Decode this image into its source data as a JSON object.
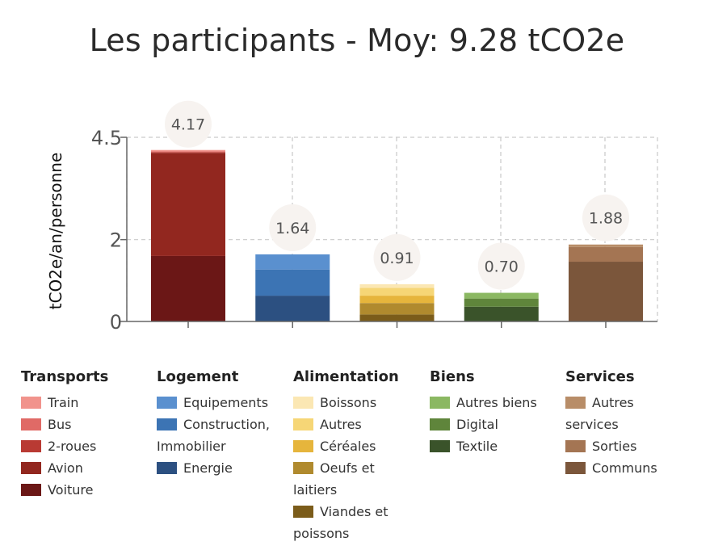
{
  "title": "Les participants - Moy: 9.28 tCO2e",
  "chart_data": {
    "type": "bar",
    "stacked": true,
    "title": "Les participants - Moy: 9.28 tCO2e",
    "ylabel": "tCO2e/an/personne",
    "xlabel": "",
    "ylim": [
      0,
      4.5
    ],
    "yticks": [
      "4.5",
      "2",
      "0"
    ],
    "ytick_values": [
      4.5,
      2,
      0
    ],
    "grid": true,
    "categories": [
      "Transports",
      "Logement",
      "Alimentation",
      "Biens",
      "Services"
    ],
    "totals": [
      4.17,
      1.64,
      0.91,
      0.7,
      1.88
    ],
    "total_labels": [
      "4.17",
      "1.64",
      "0.91",
      "0.70",
      "1.88"
    ],
    "groups": [
      {
        "category": "Transports",
        "segments": [
          {
            "name": "Voiture",
            "value": 1.6,
            "color": "#6b1716"
          },
          {
            "name": "Avion",
            "value": 2.52,
            "color": "#92271f"
          },
          {
            "name": "2-roues",
            "value": 0.02,
            "color": "#b93a33"
          },
          {
            "name": "Bus",
            "value": 0.02,
            "color": "#e06a66"
          },
          {
            "name": "Train",
            "value": 0.03,
            "color": "#f1938c"
          }
        ]
      },
      {
        "category": "Logement",
        "segments": [
          {
            "name": "Energie",
            "value": 0.63,
            "color": "#2c5081"
          },
          {
            "name": "Construction, Immobilier",
            "value": 0.64,
            "color": "#3c74b4"
          },
          {
            "name": "Equipements",
            "value": 0.37,
            "color": "#5a90cf"
          }
        ]
      },
      {
        "category": "Alimentation",
        "segments": [
          {
            "name": "Viandes et poissons",
            "value": 0.17,
            "color": "#7b5c1a"
          },
          {
            "name": "Oeufs et laitiers",
            "value": 0.28,
            "color": "#b08a2e"
          },
          {
            "name": "Céréales",
            "value": 0.18,
            "color": "#e6b53c"
          },
          {
            "name": "Autres",
            "value": 0.19,
            "color": "#f6d676"
          },
          {
            "name": "Boissons",
            "value": 0.09,
            "color": "#fbe7b3"
          }
        ]
      },
      {
        "category": "Biens",
        "segments": [
          {
            "name": "Textile",
            "value": 0.36,
            "color": "#3a532a"
          },
          {
            "name": "Digital",
            "value": 0.2,
            "color": "#5f853b"
          },
          {
            "name": "Autres biens",
            "value": 0.14,
            "color": "#8bb862"
          }
        ]
      },
      {
        "category": "Services",
        "segments": [
          {
            "name": "Communs",
            "value": 1.46,
            "color": "#7b563b"
          },
          {
            "name": "Sorties",
            "value": 0.36,
            "color": "#a47553"
          },
          {
            "name": "Autres services",
            "value": 0.06,
            "color": "#b88d68"
          }
        ]
      }
    ]
  },
  "legend": [
    {
      "title": "Transports",
      "items": [
        {
          "label": "Train",
          "color": "#f1938c"
        },
        {
          "label": "Bus",
          "color": "#e06a66"
        },
        {
          "label": "2-roues",
          "color": "#b93a33"
        },
        {
          "label": "Avion",
          "color": "#92271f"
        },
        {
          "label": "Voiture",
          "color": "#6b1716"
        }
      ]
    },
    {
      "title": "Logement",
      "items": [
        {
          "label": "Equipements",
          "color": "#5a90cf"
        },
        {
          "label": "Construction, Immobilier",
          "color": "#3c74b4"
        },
        {
          "label": "Energie",
          "color": "#2c5081"
        }
      ]
    },
    {
      "title": "Alimentation",
      "items": [
        {
          "label": "Boissons",
          "color": "#fbe7b3"
        },
        {
          "label": "Autres",
          "color": "#f6d676"
        },
        {
          "label": "Céréales",
          "color": "#e6b53c"
        },
        {
          "label": "Oeufs et laitiers",
          "color": "#b08a2e"
        },
        {
          "label": "Viandes et poissons",
          "color": "#7b5c1a"
        }
      ]
    },
    {
      "title": "Biens",
      "items": [
        {
          "label": "Autres biens",
          "color": "#8bb862"
        },
        {
          "label": "Digital",
          "color": "#5f853b"
        },
        {
          "label": "Textile",
          "color": "#3a532a"
        }
      ]
    },
    {
      "title": "Services",
      "items": [
        {
          "label": "Autres services",
          "color": "#b88d68"
        },
        {
          "label": "Sorties",
          "color": "#a47553"
        },
        {
          "label": "Communs",
          "color": "#7b563b"
        }
      ]
    }
  ]
}
